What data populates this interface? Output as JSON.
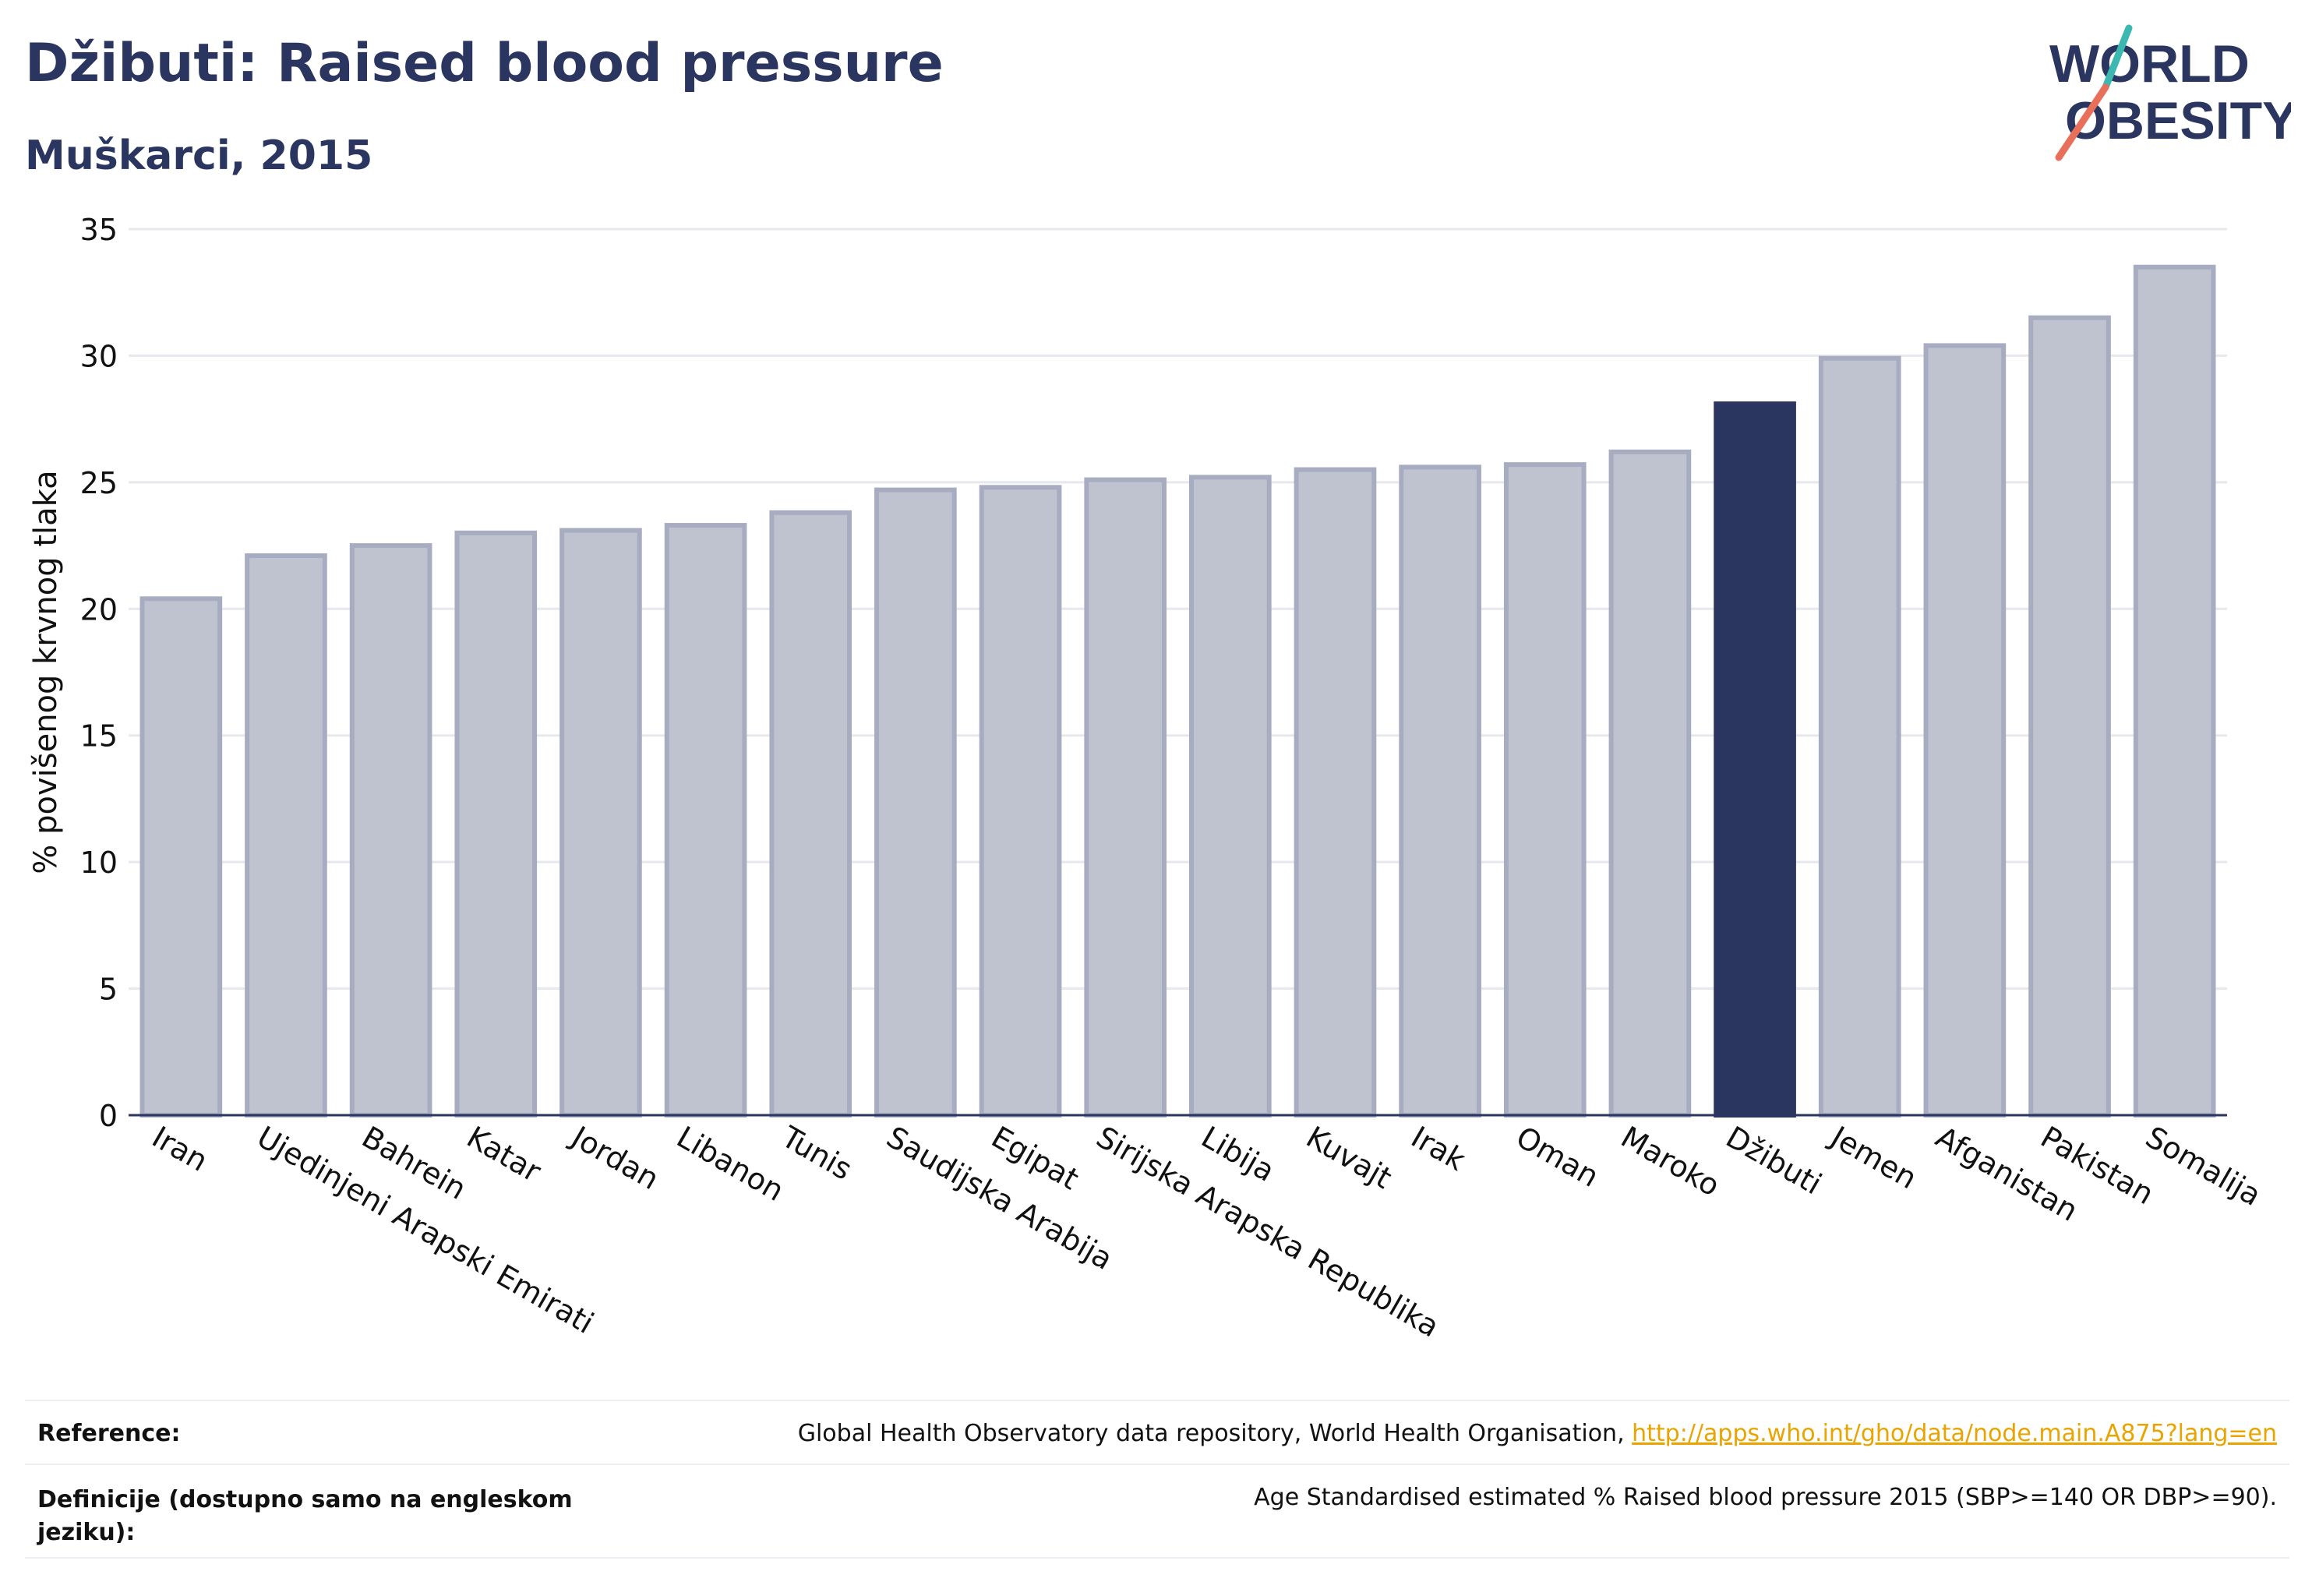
{
  "header": {
    "title": "Džibuti: Raised blood pressure",
    "subtitle": "Muškarci, 2015"
  },
  "logo": {
    "line1": "WORLD",
    "line2": "OBESITY"
  },
  "chart_data": {
    "type": "bar",
    "ylabel": "% povišenog krvnog tlaka",
    "xlabel": "",
    "ylim": [
      0,
      35
    ],
    "yticks": [
      0,
      5,
      10,
      15,
      20,
      25,
      30,
      35
    ],
    "grid": true,
    "highlight": "Džibuti",
    "categories": [
      "Iran",
      "Ujedinjeni Arapski Emirati",
      "Bahrein",
      "Katar",
      "Jordan",
      "Libanon",
      "Tunis",
      "Saudijska Arabija",
      "Egipat",
      "Sirijska Arapska Republika",
      "Libija",
      "Kuvajt",
      "Irak",
      "Oman",
      "Maroko",
      "Džibuti",
      "Jemen",
      "Afganistan",
      "Pakistan",
      "Somalija"
    ],
    "values": [
      20.4,
      22.1,
      22.5,
      23.0,
      23.1,
      23.3,
      23.8,
      24.7,
      24.8,
      25.1,
      25.2,
      25.5,
      25.6,
      25.7,
      26.2,
      28.1,
      29.9,
      30.4,
      31.5,
      33.5
    ]
  },
  "colors": {
    "bar": "#bfc3d0",
    "bar_border": "#a7acc1",
    "highlight": "#2a3560",
    "text": "#2a3560",
    "grid": "#e6e8ee",
    "link": "#e9a400",
    "logo_teal": "#3bb8b0",
    "logo_coral": "#e8705a"
  },
  "footer": {
    "reference_label": "Reference:",
    "reference_text": "Global Health Observatory data repository, World Health Organisation, ",
    "reference_link": "http://apps.who.int/gho/data/node.main.A875?lang=en",
    "definition_label": "Definicije (dostupno samo na engleskom jeziku):",
    "definition_text": "Age Standardised estimated % Raised blood pressure 2015 (SBP>=140 OR DBP>=90)."
  }
}
